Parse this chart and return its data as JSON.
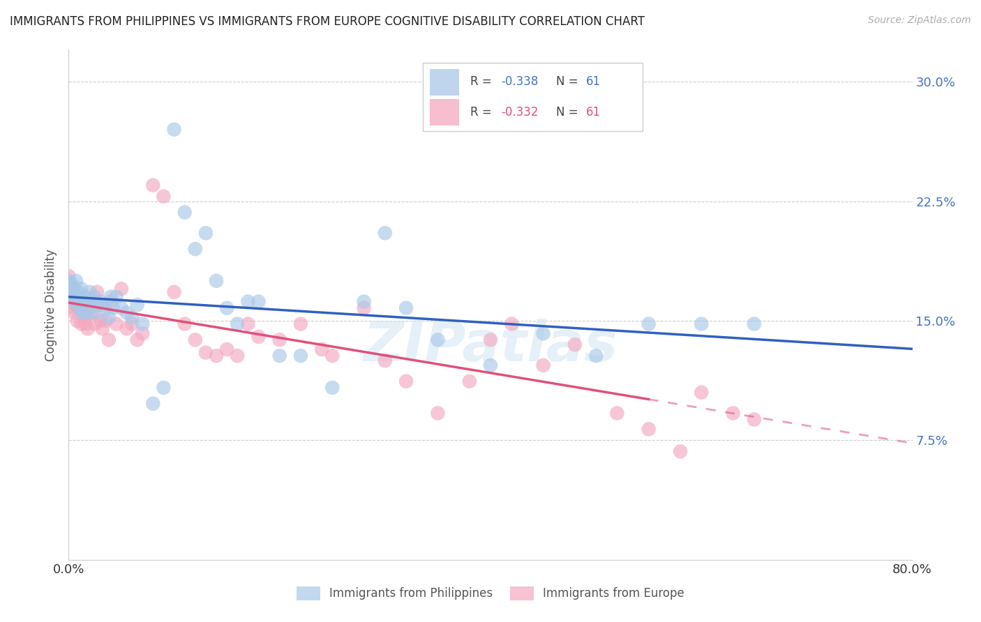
{
  "title": "IMMIGRANTS FROM PHILIPPINES VS IMMIGRANTS FROM EUROPE COGNITIVE DISABILITY CORRELATION CHART",
  "source": "Source: ZipAtlas.com",
  "ylabel": "Cognitive Disability",
  "xlim": [
    0.0,
    0.8
  ],
  "ylim": [
    0.0,
    0.32
  ],
  "yticks": [
    0.075,
    0.15,
    0.225,
    0.3
  ],
  "ytick_labels": [
    "7.5%",
    "15.0%",
    "22.5%",
    "30.0%"
  ],
  "xticks": [
    0.0,
    0.2,
    0.4,
    0.6,
    0.8
  ],
  "xtick_labels": [
    "0.0%",
    "",
    "",
    "",
    "80.0%"
  ],
  "philippines_color": "#a8c8e8",
  "europe_color": "#f4a8c0",
  "philippines_line_color": "#3060c0",
  "europe_line_color": "#e0507a",
  "philippines_R": -0.338,
  "philippines_N": 61,
  "europe_R": -0.332,
  "europe_N": 61,
  "background_color": "#ffffff",
  "watermark": "ZIPatlas",
  "phil_x": [
    0.0,
    0.001,
    0.002,
    0.003,
    0.004,
    0.005,
    0.006,
    0.007,
    0.008,
    0.009,
    0.01,
    0.011,
    0.012,
    0.013,
    0.014,
    0.015,
    0.016,
    0.017,
    0.018,
    0.019,
    0.02,
    0.022,
    0.024,
    0.025,
    0.027,
    0.03,
    0.032,
    0.035,
    0.038,
    0.04,
    0.042,
    0.045,
    0.05,
    0.055,
    0.06,
    0.065,
    0.07,
    0.08,
    0.09,
    0.1,
    0.11,
    0.12,
    0.13,
    0.14,
    0.15,
    0.16,
    0.17,
    0.18,
    0.2,
    0.22,
    0.25,
    0.28,
    0.3,
    0.32,
    0.35,
    0.4,
    0.45,
    0.5,
    0.55,
    0.6,
    0.65
  ],
  "phil_y": [
    0.175,
    0.172,
    0.168,
    0.173,
    0.165,
    0.17,
    0.162,
    0.175,
    0.16,
    0.168,
    0.163,
    0.158,
    0.17,
    0.155,
    0.162,
    0.165,
    0.158,
    0.155,
    0.16,
    0.162,
    0.168,
    0.163,
    0.165,
    0.155,
    0.16,
    0.162,
    0.16,
    0.158,
    0.152,
    0.165,
    0.158,
    0.165,
    0.158,
    0.155,
    0.152,
    0.16,
    0.148,
    0.098,
    0.108,
    0.27,
    0.218,
    0.195,
    0.205,
    0.175,
    0.158,
    0.148,
    0.162,
    0.162,
    0.128,
    0.128,
    0.108,
    0.162,
    0.205,
    0.158,
    0.138,
    0.122,
    0.142,
    0.128,
    0.148,
    0.148,
    0.148
  ],
  "eur_x": [
    0.0,
    0.001,
    0.002,
    0.003,
    0.004,
    0.005,
    0.006,
    0.007,
    0.008,
    0.009,
    0.01,
    0.012,
    0.013,
    0.015,
    0.016,
    0.018,
    0.02,
    0.022,
    0.025,
    0.027,
    0.03,
    0.032,
    0.035,
    0.038,
    0.04,
    0.045,
    0.05,
    0.055,
    0.06,
    0.065,
    0.07,
    0.08,
    0.09,
    0.1,
    0.11,
    0.12,
    0.13,
    0.14,
    0.15,
    0.16,
    0.17,
    0.18,
    0.2,
    0.22,
    0.24,
    0.25,
    0.28,
    0.3,
    0.32,
    0.35,
    0.38,
    0.4,
    0.42,
    0.45,
    0.48,
    0.52,
    0.55,
    0.58,
    0.6,
    0.63,
    0.65
  ],
  "eur_y": [
    0.178,
    0.17,
    0.165,
    0.162,
    0.158,
    0.168,
    0.155,
    0.162,
    0.15,
    0.158,
    0.158,
    0.148,
    0.16,
    0.152,
    0.148,
    0.145,
    0.158,
    0.155,
    0.148,
    0.168,
    0.15,
    0.145,
    0.15,
    0.138,
    0.162,
    0.148,
    0.17,
    0.145,
    0.148,
    0.138,
    0.142,
    0.235,
    0.228,
    0.168,
    0.148,
    0.138,
    0.13,
    0.128,
    0.132,
    0.128,
    0.148,
    0.14,
    0.138,
    0.148,
    0.132,
    0.128,
    0.158,
    0.125,
    0.112,
    0.092,
    0.112,
    0.138,
    0.148,
    0.122,
    0.135,
    0.092,
    0.082,
    0.068,
    0.105,
    0.092,
    0.088
  ]
}
